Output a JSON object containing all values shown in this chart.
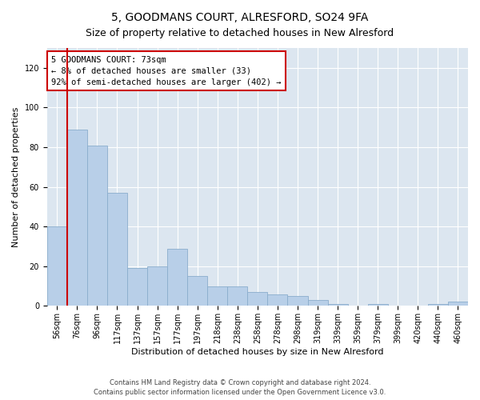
{
  "title": "5, GOODMANS COURT, ALRESFORD, SO24 9FA",
  "subtitle": "Size of property relative to detached houses in New Alresford",
  "xlabel": "Distribution of detached houses by size in New Alresford",
  "ylabel": "Number of detached properties",
  "categories": [
    "56sqm",
    "76sqm",
    "96sqm",
    "117sqm",
    "137sqm",
    "157sqm",
    "177sqm",
    "197sqm",
    "218sqm",
    "238sqm",
    "258sqm",
    "278sqm",
    "298sqm",
    "319sqm",
    "339sqm",
    "359sqm",
    "379sqm",
    "399sqm",
    "420sqm",
    "440sqm",
    "460sqm"
  ],
  "values": [
    40,
    89,
    81,
    57,
    19,
    20,
    29,
    15,
    10,
    10,
    7,
    6,
    5,
    3,
    1,
    0,
    1,
    0,
    0,
    1,
    2
  ],
  "bar_color": "#b8cfe8",
  "bar_edge_color": "#8aadcc",
  "vline_color": "#cc0000",
  "vline_x_index": 0.5,
  "annotation_text": "5 GOODMANS COURT: 73sqm\n← 8% of detached houses are smaller (33)\n92% of semi-detached houses are larger (402) →",
  "annotation_box_color": "#ffffff",
  "annotation_box_edge": "#cc0000",
  "ylim": [
    0,
    130
  ],
  "yticks": [
    0,
    20,
    40,
    60,
    80,
    100,
    120
  ],
  "background_color": "#dce6f0",
  "footer": "Contains HM Land Registry data © Crown copyright and database right 2024.\nContains public sector information licensed under the Open Government Licence v3.0.",
  "title_fontsize": 10,
  "subtitle_fontsize": 9,
  "xlabel_fontsize": 8,
  "ylabel_fontsize": 8,
  "tick_fontsize": 7,
  "annotation_fontsize": 7.5
}
